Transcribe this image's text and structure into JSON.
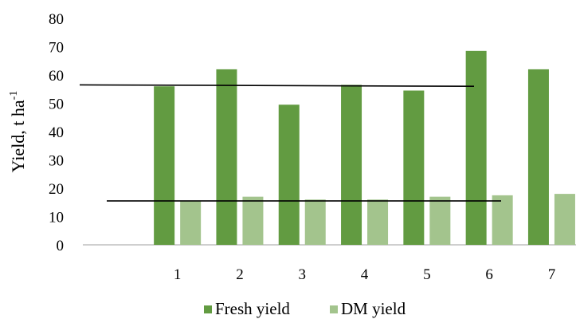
{
  "chart_data": {
    "type": "bar",
    "categories": [
      "1",
      "2",
      "3",
      "4",
      "5",
      "6",
      "7"
    ],
    "series": [
      {
        "name": "Fresh yield",
        "values": [
          56,
          62,
          49.5,
          56.5,
          54.5,
          68.5,
          62
        ],
        "color": "#629b41"
      },
      {
        "name": "DM yield",
        "values": [
          15.5,
          17,
          16,
          16,
          17,
          17.5,
          18
        ],
        "color": "#a3c48d"
      }
    ],
    "reference_lines": [
      {
        "y_start": 56.5,
        "y_end": 56
      },
      {
        "y_start": 15.5,
        "y_end": 15.5
      }
    ],
    "ylabel_main": "Yield, t ha",
    "ylabel_sup": "-1",
    "ylim": [
      0,
      80
    ],
    "yticks": [
      0,
      10,
      20,
      30,
      40,
      50,
      60,
      70,
      80
    ],
    "grid": false,
    "legend_position": "bottom"
  }
}
